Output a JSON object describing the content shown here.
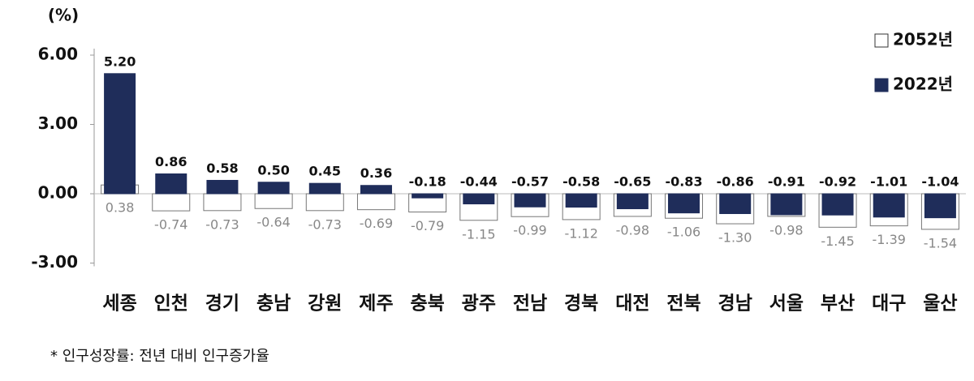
{
  "chart_data": {
    "type": "bar",
    "unit_label": "(%)",
    "footnote": "* 인구성장률: 전년 대비 인구증가율",
    "categories": [
      "세종",
      "인천",
      "경기",
      "충남",
      "강원",
      "제주",
      "충북",
      "광주",
      "전남",
      "경북",
      "대전",
      "전북",
      "경남",
      "서울",
      "부산",
      "대구",
      "울산"
    ],
    "series": [
      {
        "name": "2052년",
        "color": "#ffffff",
        "values": [
          0.38,
          -0.74,
          -0.73,
          -0.64,
          -0.73,
          -0.69,
          -0.79,
          -1.15,
          -0.99,
          -1.12,
          -0.98,
          -1.06,
          -1.3,
          -0.98,
          -1.45,
          -1.39,
          -1.54
        ],
        "value_labels": [
          "0.38",
          "-0.74",
          "-0.73",
          "-0.64",
          "-0.73",
          "-0.69",
          "-0.79",
          "-1.15",
          "-0.99",
          "-1.12",
          "-0.98",
          "-1.06",
          "-1.30",
          "-0.98",
          "-1.45",
          "-1.39",
          "-1.54"
        ]
      },
      {
        "name": "2022년",
        "color": "#1f2d5a",
        "values": [
          5.2,
          0.86,
          0.58,
          0.5,
          0.45,
          0.36,
          -0.18,
          -0.44,
          -0.57,
          -0.58,
          -0.65,
          -0.83,
          -0.86,
          -0.91,
          -0.92,
          -1.01,
          -1.04
        ],
        "value_labels": [
          "5.20",
          "0.86",
          "0.58",
          "0.50",
          "0.45",
          "0.36",
          "-0.18",
          "-0.44",
          "-0.57",
          "-0.58",
          "-0.65",
          "-0.83",
          "-0.86",
          "-0.91",
          "-0.92",
          "-1.01",
          "-1.04"
        ]
      }
    ],
    "ylim": [
      -3,
      6
    ],
    "yticks": [
      {
        "value": 6,
        "label": "6.00"
      },
      {
        "value": 3,
        "label": "3.00"
      },
      {
        "value": 0,
        "label": "0.00"
      },
      {
        "value": -3,
        "label": "-3.00"
      }
    ],
    "legend": "top-right"
  }
}
